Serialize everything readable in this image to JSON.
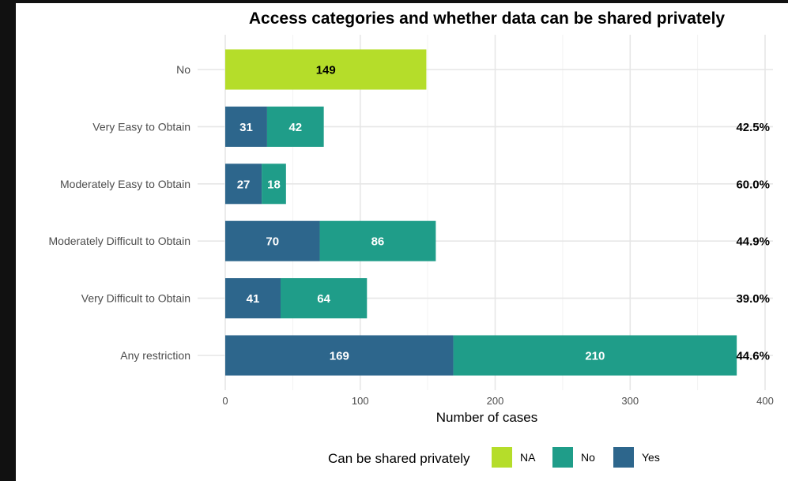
{
  "chart_data": {
    "type": "bar",
    "orientation": "horizontal",
    "stacked": true,
    "title": "Access categories and whether data can be shared privately",
    "xlabel": "Number of cases",
    "ylabel": "",
    "xlim": [
      0,
      400
    ],
    "x_ticks": [
      0,
      100,
      200,
      300,
      400
    ],
    "grid": true,
    "categories": [
      "No",
      "Very Easy to Obtain",
      "Moderately Easy to Obtain",
      "Moderately Difficult to Obtain",
      "Very Difficult to Obtain",
      "Any restriction"
    ],
    "series": [
      {
        "name": "Yes",
        "color": "#2d668c",
        "label_color": "#ffffff",
        "values": [
          0,
          31,
          27,
          70,
          41,
          169
        ]
      },
      {
        "name": "No",
        "color": "#1f9d89",
        "label_color": "#ffffff",
        "values": [
          0,
          42,
          18,
          86,
          64,
          210
        ]
      },
      {
        "name": "NA",
        "color": "#b5dd2a",
        "label_color": "#000000",
        "values": [
          149,
          0,
          0,
          0,
          0,
          0
        ]
      }
    ],
    "annotations": [
      "",
      "42.5%",
      "60.0%",
      "44.9%",
      "39.0%",
      "44.6%"
    ],
    "legend": {
      "title": "Can be shared privately",
      "position": "bottom",
      "entries": [
        {
          "label": "NA",
          "color": "#b5dd2a"
        },
        {
          "label": "No",
          "color": "#1f9d89"
        },
        {
          "label": "Yes",
          "color": "#2d668c"
        }
      ]
    }
  }
}
